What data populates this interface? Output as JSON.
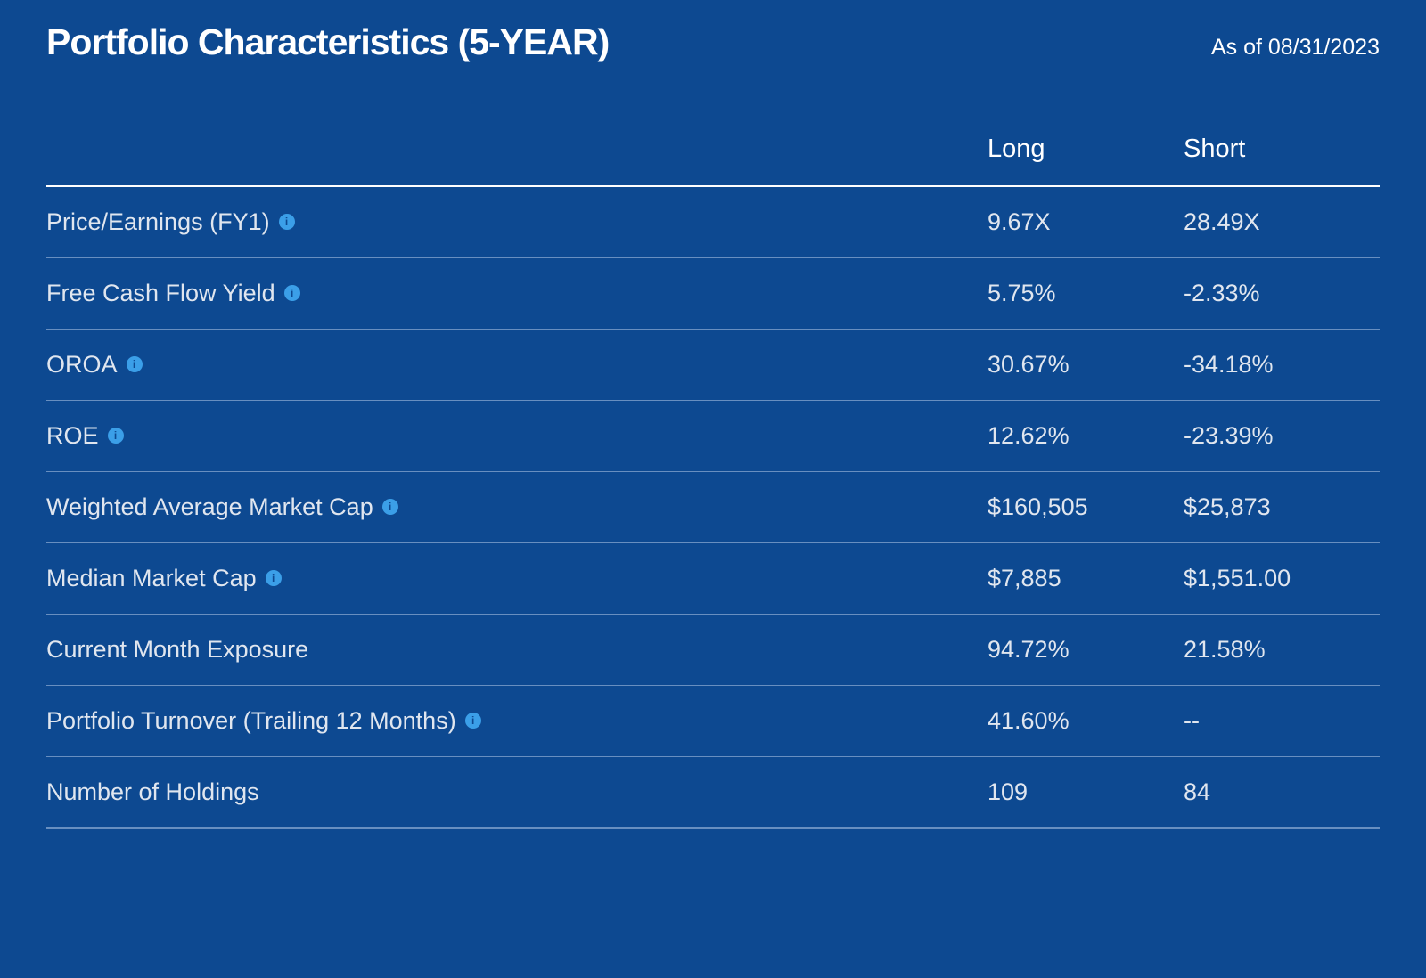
{
  "header": {
    "title": "Portfolio Characteristics (5-YEAR)",
    "date_label": "As of 08/31/2023"
  },
  "columns": {
    "metric": "",
    "long": "Long",
    "short": "Short"
  },
  "rows": [
    {
      "label": "Price/Earnings (FY1)",
      "info": true,
      "long": "9.67X",
      "short": "28.49X"
    },
    {
      "label": "Free Cash Flow Yield",
      "info": true,
      "long": "5.75%",
      "short": "-2.33%"
    },
    {
      "label": "OROA",
      "info": true,
      "long": "30.67%",
      "short": "-34.18%"
    },
    {
      "label": "ROE",
      "info": true,
      "long": "12.62%",
      "short": "-23.39%"
    },
    {
      "label": "Weighted Average Market Cap",
      "info": true,
      "long": "$160,505",
      "short": "$25,873"
    },
    {
      "label": "Median Market Cap",
      "info": true,
      "long": "$7,885",
      "short": "$1,551.00"
    },
    {
      "label": "Current Month Exposure",
      "info": false,
      "long": "94.72%",
      "short": "21.58%"
    },
    {
      "label": "Portfolio Turnover (Trailing 12 Months)",
      "info": true,
      "long": "41.60%",
      "short": "--"
    },
    {
      "label": "Number of Holdings",
      "info": false,
      "long": "109",
      "short": "84"
    }
  ],
  "styling": {
    "background_color": "#0d4991",
    "text_color": "#ffffff",
    "row_text_color": "#e0e6ef",
    "divider_color": "#688fc0",
    "header_divider_color": "#ffffff",
    "info_icon_bg": "#3b9fe8",
    "info_icon_fg": "#0d4991",
    "title_fontsize": 41,
    "date_fontsize": 25,
    "header_fontsize": 29,
    "cell_fontsize": 27,
    "font_family": "Arial"
  }
}
